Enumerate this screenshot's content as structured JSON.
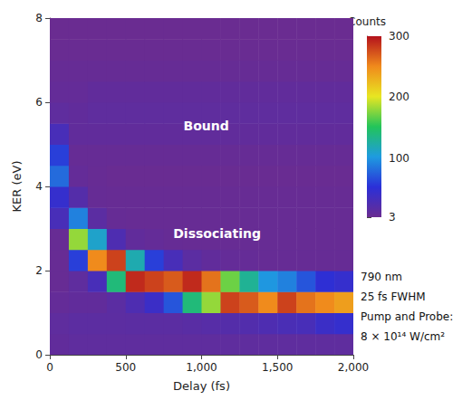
{
  "chart_data": {
    "type": "heatmap",
    "x_label": "Delay (fs)",
    "y_label": "KER (eV)",
    "xlim": [
      0,
      2000
    ],
    "xticks": [
      0,
      500,
      1000,
      1500,
      2000
    ],
    "ylim": [
      0,
      8
    ],
    "yticks": [
      0,
      2,
      4,
      6,
      8
    ],
    "grid": false,
    "x_bins": [
      0,
      125,
      250,
      375,
      500,
      625,
      750,
      875,
      1000,
      1125,
      1250,
      1375,
      1500,
      1625,
      1750,
      1875,
      2000
    ],
    "y_bins": [
      0,
      0.5,
      1,
      1.5,
      2,
      2.5,
      3,
      3.5,
      4,
      4.5,
      5,
      5.5,
      6,
      6.5,
      7,
      7.5,
      8
    ],
    "counts": [
      [
        10,
        12,
        8,
        5,
        5,
        5,
        30,
        45,
        80,
        60,
        30,
        12,
        8,
        6,
        4,
        3
      ],
      [
        12,
        14,
        10,
        12,
        60,
        180,
        90,
        20,
        8,
        6,
        10,
        10,
        8,
        6,
        4,
        3
      ],
      [
        12,
        14,
        10,
        30,
        250,
        110,
        15,
        6,
        5,
        6,
        10,
        12,
        10,
        6,
        4,
        3
      ],
      [
        12,
        14,
        15,
        140,
        280,
        25,
        6,
        5,
        4,
        6,
        10,
        12,
        10,
        6,
        4,
        3
      ],
      [
        12,
        15,
        25,
        290,
        120,
        10,
        5,
        5,
        4,
        6,
        10,
        12,
        10,
        6,
        4,
        3
      ],
      [
        12,
        15,
        40,
        280,
        60,
        8,
        5,
        5,
        4,
        6,
        10,
        12,
        10,
        6,
        4,
        3
      ],
      [
        12,
        15,
        70,
        270,
        30,
        6,
        5,
        5,
        4,
        6,
        10,
        12,
        10,
        6,
        4,
        3
      ],
      [
        12,
        16,
        140,
        290,
        15,
        5,
        5,
        5,
        4,
        6,
        10,
        12,
        10,
        6,
        4,
        3
      ],
      [
        12,
        18,
        180,
        260,
        10,
        5,
        5,
        5,
        4,
        6,
        10,
        12,
        10,
        6,
        4,
        3
      ],
      [
        12,
        20,
        280,
        170,
        8,
        5,
        5,
        5,
        4,
        6,
        10,
        12,
        10,
        6,
        4,
        3
      ],
      [
        12,
        22,
        270,
        130,
        7,
        5,
        5,
        5,
        4,
        6,
        10,
        12,
        10,
        6,
        4,
        3
      ],
      [
        12,
        25,
        250,
        100,
        6,
        5,
        5,
        5,
        4,
        6,
        10,
        12,
        10,
        6,
        4,
        3
      ],
      [
        12,
        28,
        280,
        90,
        6,
        5,
        5,
        5,
        4,
        6,
        10,
        12,
        10,
        6,
        4,
        3
      ],
      [
        12,
        30,
        260,
        70,
        6,
        5,
        5,
        5,
        4,
        6,
        10,
        12,
        10,
        6,
        4,
        3
      ],
      [
        12,
        40,
        250,
        50,
        6,
        5,
        5,
        5,
        4,
        6,
        10,
        12,
        10,
        6,
        4,
        3
      ],
      [
        12,
        45,
        240,
        45,
        6,
        5,
        5,
        5,
        4,
        6,
        10,
        12,
        10,
        6,
        4,
        3
      ]
    ],
    "colorbar": {
      "label": "Counts",
      "range": [
        3,
        300
      ],
      "ticks": [
        3,
        100,
        200,
        300
      ]
    },
    "annotations": [
      "Bound",
      "Dissociating"
    ],
    "notes": [
      "790 nm",
      "25 fs FWHM",
      "Pump and Probe:",
      "8 × 10¹⁴ W/cm²"
    ]
  }
}
